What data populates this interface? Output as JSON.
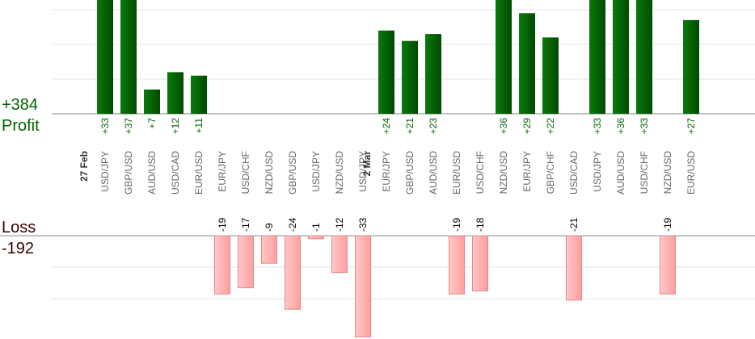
{
  "chart_data": {
    "type": "bar",
    "profit_label": "Profit",
    "loss_label": "Loss",
    "profit_total": "+384",
    "loss_total": "-192",
    "groups": [
      {
        "date": "27 Feb",
        "start_index": 0
      },
      {
        "date": "2 Mar",
        "start_index": 12
      }
    ],
    "categories": [
      "USD/JPY",
      "GBP/USD",
      "AUD/USD",
      "USD/CAD",
      "EUR/USD",
      "EUR/JPY",
      "USD/CHF",
      "NZD/USD",
      "GBP/USD",
      "USD/JPY",
      "NZD/USD",
      "USD/JPY",
      "EUR/JPY",
      "GBP/USD",
      "AUD/USD",
      "EUR/USD",
      "USD/CHF",
      "NZD/USD",
      "EUR/JPY",
      "GBP/CHF",
      "USD/CAD",
      "USD/JPY",
      "AUD/USD",
      "USD/CHF",
      "NZD/USD",
      "EUR/USD"
    ],
    "values": [
      33,
      37,
      7,
      12,
      11,
      -19,
      -17,
      -9,
      -24,
      -1,
      -12,
      -33,
      24,
      21,
      23,
      -19,
      -18,
      36,
      29,
      22,
      -21,
      33,
      36,
      33,
      -19,
      27
    ],
    "value_labels": [
      "+33",
      "+37",
      "+7",
      "+12",
      "+11",
      "-19",
      "-17",
      "-9",
      "-24",
      "-1",
      "-12",
      "-33",
      "+24",
      "+21",
      "+23",
      "-19",
      "-18",
      "+36",
      "+29",
      "+22",
      "-21",
      "+33",
      "+36",
      "+33",
      "-19",
      "+27"
    ],
    "colors": {
      "positive": "#0a6e0a",
      "positive_dark": "#004d00",
      "negative": "#ffb3b3",
      "negative_border": "#e08a8a",
      "grid": "#e6e6e6",
      "axis": "#888888"
    }
  }
}
